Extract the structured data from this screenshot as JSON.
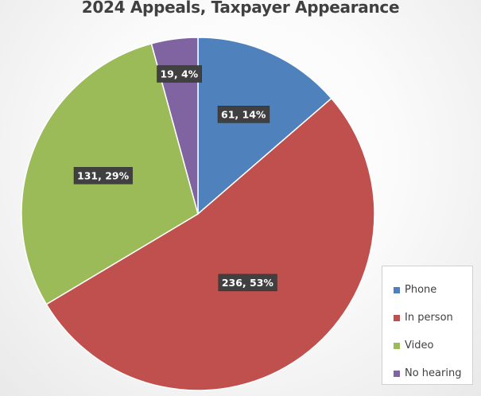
{
  "chart_data": {
    "type": "pie",
    "title": "2024 Appeals, Taxpayer Appearance",
    "categories": [
      "Phone",
      "In person",
      "Video",
      "No hearing"
    ],
    "values": [
      61,
      236,
      131,
      19
    ],
    "percent_labels": [
      "14%",
      "53%",
      "29%",
      "4%"
    ],
    "data_labels": [
      "61, 14%",
      "236, 53%",
      "131, 29%",
      "19, 4%"
    ],
    "colors": [
      "#4f81bd",
      "#c0504d",
      "#9bbb59",
      "#8064a2"
    ],
    "start_angle": "12 o'clock",
    "direction": "clockwise",
    "legend_position": "right-bottom"
  }
}
